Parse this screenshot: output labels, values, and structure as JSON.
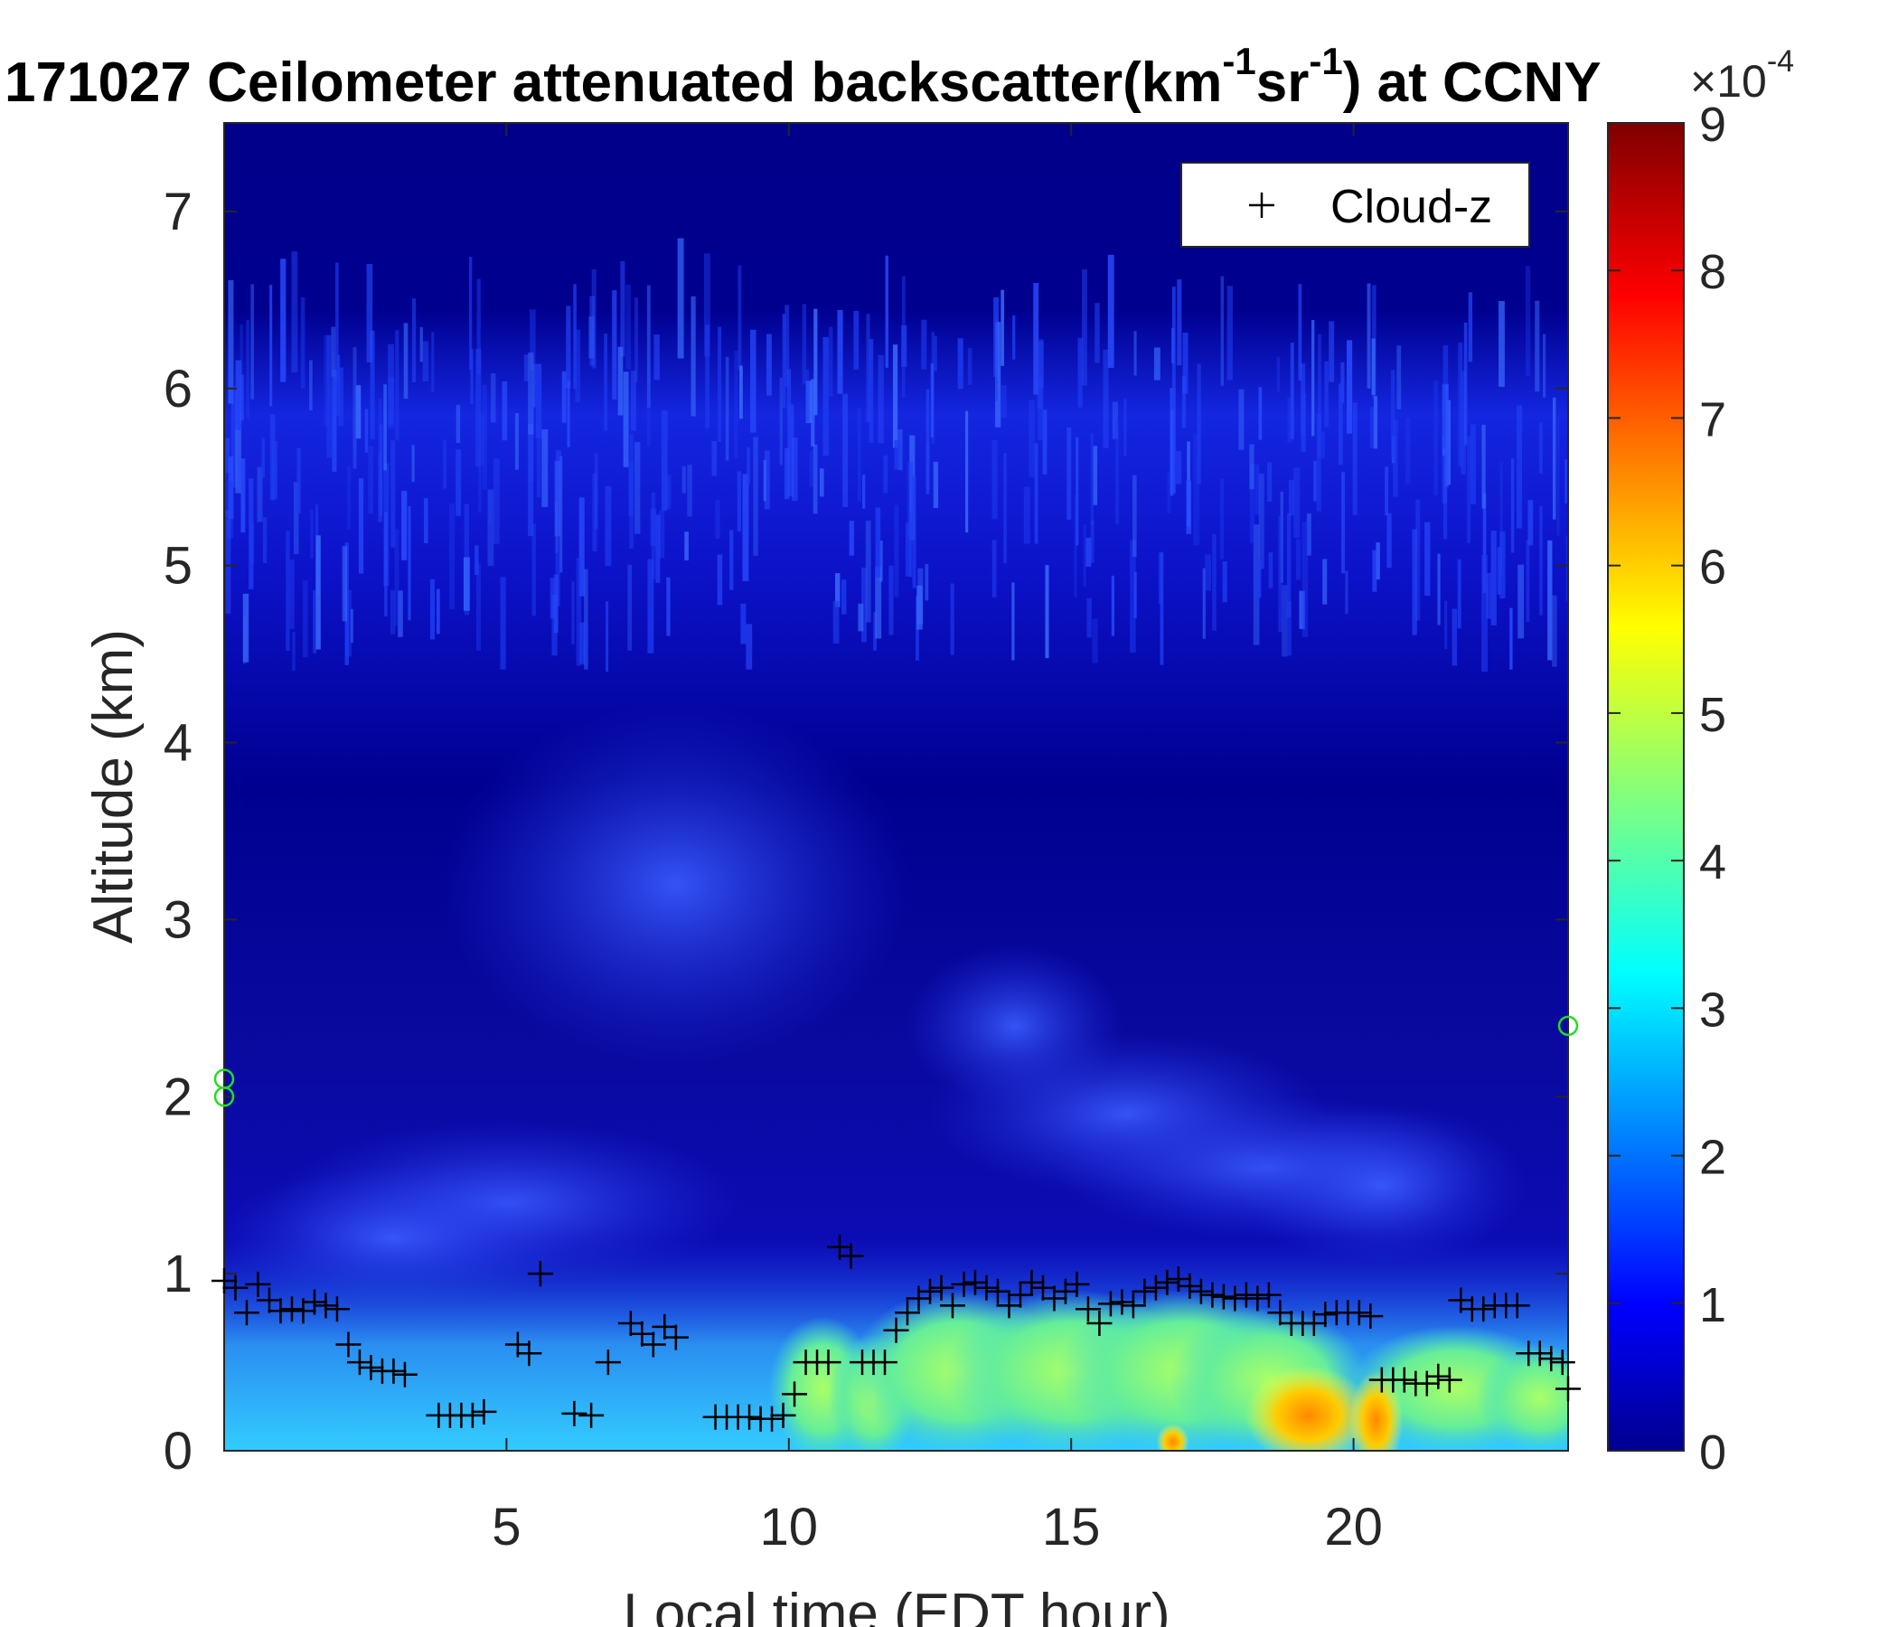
{
  "chart_data": {
    "type": "heatmap",
    "title": "171027 Ceilometer attenuated backscatter(km",
    "title_sup_1": "-1",
    "title_mid": "sr",
    "title_sup_2": "-1",
    "title_end": ") at CCNY",
    "xlabel": "Local time (EDT hour)",
    "ylabel": "Altitude (km)",
    "xlim": [
      0,
      23.8
    ],
    "ylim": [
      0,
      7.5
    ],
    "x_ticks": [
      "5",
      "10",
      "15",
      "20"
    ],
    "x_tick_values": [
      5,
      10,
      15,
      20
    ],
    "y_ticks": [
      "0",
      "1",
      "2",
      "3",
      "4",
      "5",
      "6",
      "7"
    ],
    "y_tick_values": [
      0,
      1,
      2,
      3,
      4,
      5,
      6,
      7
    ],
    "colorbar": {
      "range": [
        0,
        9
      ],
      "ticks": [
        "0",
        "1",
        "2",
        "3",
        "4",
        "5",
        "6",
        "7",
        "8",
        "9"
      ],
      "tick_values": [
        0,
        1,
        2,
        3,
        4,
        5,
        6,
        7,
        8,
        9
      ],
      "multiplier_label": "×10",
      "multiplier_exponent": "-4",
      "colormap": "jet"
    },
    "legend": {
      "position": "top-right",
      "entries": [
        "Cloud-z"
      ]
    },
    "cloud_z": {
      "name": "Cloud-z",
      "marker": "+",
      "color": "#000000",
      "x": [
        0.0,
        0.2,
        0.4,
        0.6,
        0.8,
        1.0,
        1.2,
        1.4,
        1.6,
        1.8,
        2.0,
        2.2,
        2.4,
        2.6,
        2.8,
        3.0,
        3.2,
        3.8,
        4.0,
        4.2,
        4.4,
        4.6,
        5.2,
        5.4,
        5.6,
        6.2,
        6.5,
        6.8,
        7.2,
        7.4,
        7.6,
        7.8,
        8.0,
        8.7,
        8.9,
        9.1,
        9.3,
        9.5,
        9.7,
        9.9,
        10.1,
        10.3,
        10.5,
        10.7,
        10.9,
        11.1,
        11.3,
        11.5,
        11.7,
        11.9,
        12.1,
        12.3,
        12.5,
        12.7,
        12.9,
        13.1,
        13.3,
        13.5,
        13.7,
        13.9,
        14.1,
        14.3,
        14.5,
        14.7,
        14.9,
        15.1,
        15.3,
        15.5,
        15.7,
        15.9,
        16.1,
        16.3,
        16.5,
        16.7,
        16.9,
        17.1,
        17.3,
        17.5,
        17.7,
        17.9,
        18.1,
        18.3,
        18.5,
        18.7,
        18.9,
        19.1,
        19.3,
        19.5,
        19.7,
        19.9,
        20.1,
        20.3,
        20.5,
        20.7,
        20.9,
        21.1,
        21.3,
        21.5,
        21.7,
        21.9,
        22.1,
        22.3,
        22.5,
        22.7,
        22.9,
        23.1,
        23.3,
        23.5,
        23.7,
        23.8
      ],
      "y": [
        0.96,
        0.92,
        0.78,
        0.94,
        0.85,
        0.79,
        0.8,
        0.79,
        0.84,
        0.82,
        0.8,
        0.6,
        0.5,
        0.47,
        0.45,
        0.45,
        0.43,
        0.2,
        0.2,
        0.2,
        0.2,
        0.22,
        0.6,
        0.55,
        1.0,
        0.21,
        0.2,
        0.5,
        0.72,
        0.66,
        0.6,
        0.7,
        0.64,
        0.19,
        0.19,
        0.19,
        0.19,
        0.18,
        0.18,
        0.2,
        0.32,
        0.5,
        0.5,
        0.5,
        1.15,
        1.1,
        0.5,
        0.5,
        0.5,
        0.68,
        0.78,
        0.86,
        0.9,
        0.92,
        0.82,
        0.94,
        0.95,
        0.92,
        0.9,
        0.82,
        0.88,
        0.95,
        0.92,
        0.86,
        0.9,
        0.94,
        0.8,
        0.72,
        0.83,
        0.84,
        0.82,
        0.9,
        0.92,
        0.95,
        0.97,
        0.93,
        0.9,
        0.88,
        0.87,
        0.86,
        0.88,
        0.86,
        0.88,
        0.78,
        0.72,
        0.72,
        0.72,
        0.77,
        0.78,
        0.78,
        0.78,
        0.76,
        0.4,
        0.4,
        0.4,
        0.38,
        0.38,
        0.42,
        0.4,
        0.85,
        0.8,
        0.8,
        0.82,
        0.82,
        0.82,
        0.55,
        0.55,
        0.52,
        0.5,
        0.35
      ]
    },
    "edge_markers": {
      "color": "#22dd22",
      "marker": "o",
      "points": [
        [
          0.0,
          2.1
        ],
        [
          0.0,
          2.0
        ],
        [
          23.8,
          2.4
        ]
      ]
    }
  }
}
